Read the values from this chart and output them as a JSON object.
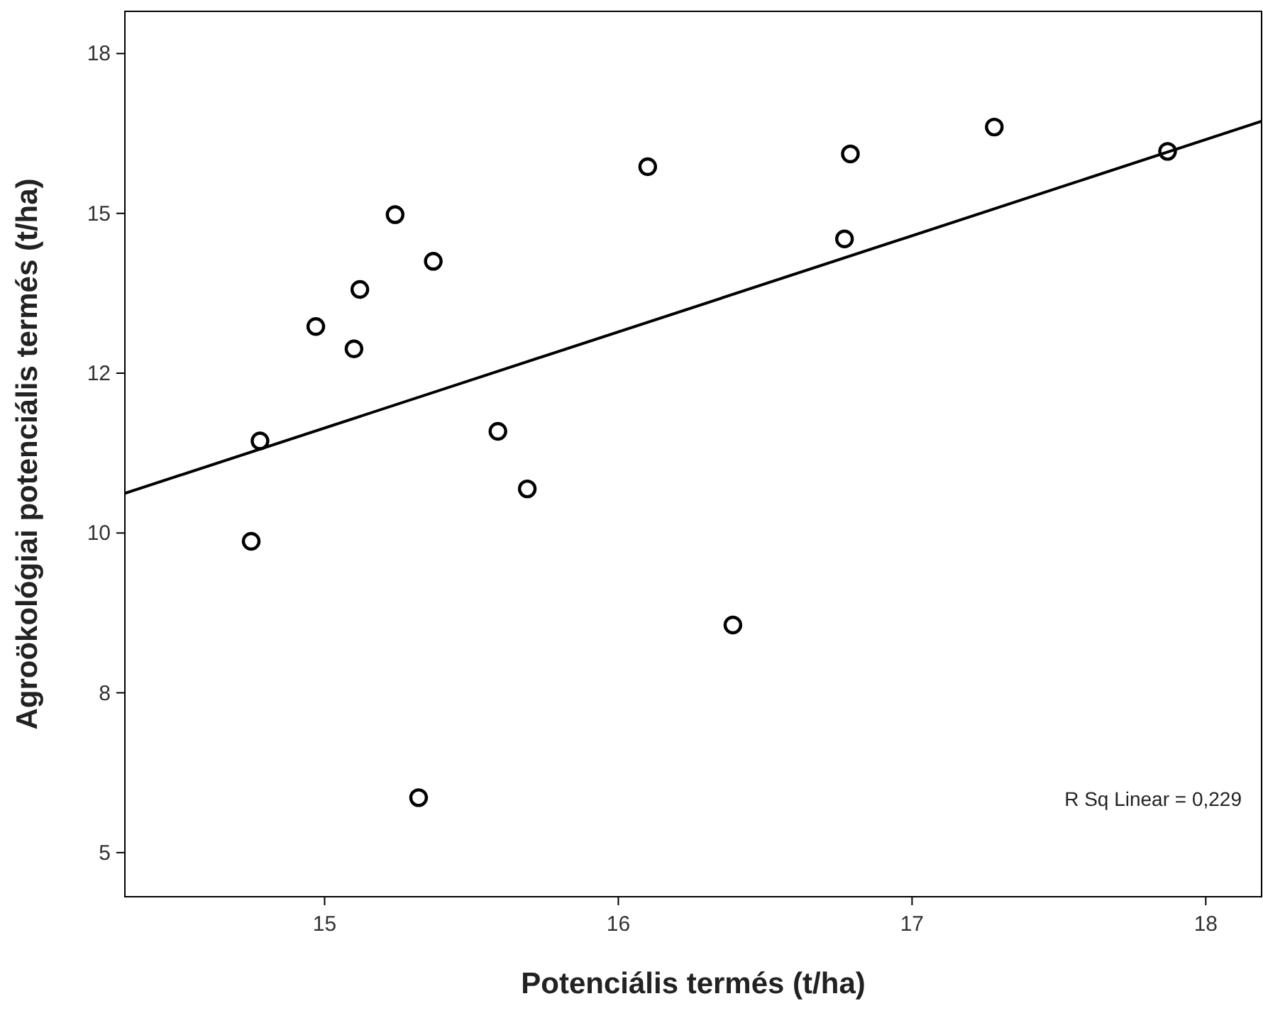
{
  "chart_data": {
    "type": "scatter",
    "xlabel": "Potenciális termés (t/ha)",
    "ylabel": "Agroökológiai potenciális termés (t/ha)",
    "xlim": [
      14.32,
      18.19
    ],
    "ylim": [
      4.31,
      18.16
    ],
    "xticks": [
      15,
      16,
      17,
      18
    ],
    "yticks": [
      {
        "value": 5,
        "label": "5"
      },
      {
        "value": 7.5,
        "label": "8"
      },
      {
        "value": 10,
        "label": "10"
      },
      {
        "value": 12.5,
        "label": "12"
      },
      {
        "value": 15,
        "label": "15"
      },
      {
        "value": 17.5,
        "label": "18"
      }
    ],
    "grid": false,
    "marker": "circle",
    "series": [
      {
        "type": "scatter",
        "color": "#000000",
        "x": [
          14.75,
          14.78,
          14.97,
          15.1,
          15.12,
          15.24,
          15.37,
          15.32,
          15.59,
          15.69,
          16.1,
          16.39,
          16.77,
          16.79,
          17.28,
          17.87
        ],
        "values": [
          9.87,
          11.44,
          13.23,
          12.88,
          13.81,
          14.98,
          14.25,
          5.86,
          11.59,
          10.69,
          15.73,
          8.56,
          14.6,
          15.93,
          16.35,
          15.97
        ]
      },
      {
        "type": "line",
        "color": "#000000",
        "marker": "none",
        "line_style": "solid",
        "x": [
          14.32,
          18.19
        ],
        "values": [
          10.62,
          16.44
        ]
      }
    ],
    "annotations": [
      "R Sq Linear = 0,229"
    ]
  }
}
